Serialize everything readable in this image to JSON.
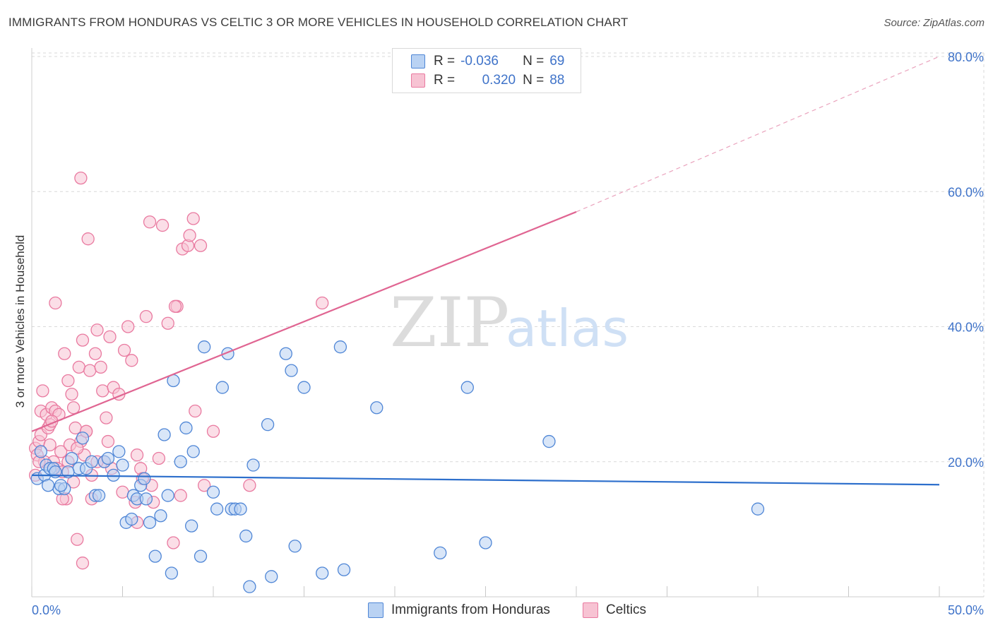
{
  "title": "IMMIGRANTS FROM HONDURAS VS CELTIC 3 OR MORE VEHICLES IN HOUSEHOLD CORRELATION CHART",
  "source": "Source: ZipAtlas.com",
  "watermark": {
    "zip": "ZIP",
    "atlas": "atlas"
  },
  "legend": {
    "rows": [
      {
        "r_label": "R =",
        "r_value": "-0.036",
        "n_label": "N =",
        "n_value": "69"
      },
      {
        "r_label": "R =",
        "r_value": "0.320",
        "n_label": "N =",
        "n_value": "88"
      }
    ]
  },
  "bottom_legend": {
    "series1": "Immigrants from Honduras",
    "series2": "Celtics"
  },
  "colors": {
    "series1_fill": "#b9d2f3",
    "series1_stroke": "#4f86d6",
    "series1_line": "#2d6fcc",
    "series2_fill": "#f7c3d3",
    "series2_stroke": "#e97aa0",
    "series2_line": "#e06592",
    "grid": "#d9d9d9",
    "tick_text": "#3f73c9"
  },
  "chart_data": {
    "type": "scatter",
    "title": "IMMIGRANTS FROM HONDURAS VS CELTIC 3 OR MORE VEHICLES IN HOUSEHOLD CORRELATION CHART",
    "ylabel": "3 or more Vehicles in Household",
    "xlim": [
      0,
      50
    ],
    "ylim": [
      0,
      80
    ],
    "x_tick_labels": [
      "0.0%",
      "50.0%"
    ],
    "y_tick_values": [
      20,
      40,
      60,
      80
    ],
    "y_tick_labels": [
      "20.0%",
      "40.0%",
      "60.0%",
      "80.0%"
    ],
    "series": [
      {
        "name": "Immigrants from Honduras",
        "r": -0.036,
        "n": 69,
        "trend": {
          "x1": 0,
          "y1": 18.0,
          "x2": 50,
          "y2": 16.6
        },
        "points": [
          [
            0.3,
            17.5
          ],
          [
            0.5,
            21.5
          ],
          [
            0.7,
            18
          ],
          [
            0.8,
            19.5
          ],
          [
            1.0,
            19
          ],
          [
            1.2,
            19
          ],
          [
            1.3,
            18.5
          ],
          [
            1.5,
            16
          ],
          [
            1.8,
            16
          ],
          [
            2.2,
            20.5
          ],
          [
            2.6,
            19
          ],
          [
            2.8,
            23.5
          ],
          [
            3.0,
            19
          ],
          [
            3.5,
            15
          ],
          [
            3.7,
            15
          ],
          [
            4.0,
            20
          ],
          [
            4.2,
            20.5
          ],
          [
            4.5,
            18
          ],
          [
            4.8,
            21.5
          ],
          [
            5.2,
            11
          ],
          [
            5.5,
            11.5
          ],
          [
            5.6,
            15
          ],
          [
            5.8,
            14.5
          ],
          [
            6.0,
            16.5
          ],
          [
            6.2,
            17.5
          ],
          [
            6.5,
            11
          ],
          [
            6.8,
            6
          ],
          [
            7.1,
            12
          ],
          [
            7.3,
            24
          ],
          [
            7.5,
            15
          ],
          [
            7.7,
            3.5
          ],
          [
            7.8,
            32
          ],
          [
            8.2,
            20
          ],
          [
            8.5,
            25
          ],
          [
            8.8,
            10.5
          ],
          [
            8.9,
            21.5
          ],
          [
            9.3,
            6
          ],
          [
            9.5,
            37
          ],
          [
            10.0,
            15.5
          ],
          [
            10.2,
            13
          ],
          [
            10.5,
            31
          ],
          [
            10.8,
            36
          ],
          [
            11.0,
            13
          ],
          [
            11.2,
            13
          ],
          [
            11.5,
            13
          ],
          [
            11.8,
            9
          ],
          [
            12.0,
            1.5
          ],
          [
            12.2,
            19.5
          ],
          [
            13.0,
            25.5
          ],
          [
            13.2,
            3
          ],
          [
            14.0,
            36
          ],
          [
            14.3,
            33.5
          ],
          [
            14.5,
            7.5
          ],
          [
            15.0,
            31
          ],
          [
            16.0,
            3.5
          ],
          [
            17.0,
            37
          ],
          [
            17.2,
            4
          ],
          [
            19.0,
            28
          ],
          [
            22.5,
            6.5
          ],
          [
            24.0,
            31
          ],
          [
            25.0,
            8
          ],
          [
            28.5,
            23
          ],
          [
            40.0,
            13
          ],
          [
            1.6,
            16.5
          ],
          [
            2.0,
            18.5
          ],
          [
            3.3,
            20
          ],
          [
            5.0,
            19.5
          ],
          [
            0.9,
            16.5
          ],
          [
            6.3,
            14.5
          ]
        ]
      },
      {
        "name": "Celtics",
        "r": 0.32,
        "n": 88,
        "trend": {
          "x1": 0,
          "y1": 24.5,
          "x2": 30,
          "y2": 57.0
        },
        "trend_dashed_to": {
          "x": 50,
          "y": 80.0
        },
        "points": [
          [
            0.2,
            18
          ],
          [
            0.2,
            22
          ],
          [
            0.3,
            21
          ],
          [
            0.4,
            23
          ],
          [
            0.5,
            24
          ],
          [
            0.5,
            27.5
          ],
          [
            0.6,
            30.5
          ],
          [
            0.7,
            20
          ],
          [
            0.8,
            27
          ],
          [
            0.9,
            25
          ],
          [
            1.0,
            22.5
          ],
          [
            1.0,
            25.5
          ],
          [
            1.1,
            28
          ],
          [
            1.2,
            20
          ],
          [
            1.3,
            27.5
          ],
          [
            1.3,
            43.5
          ],
          [
            1.4,
            19
          ],
          [
            1.5,
            27
          ],
          [
            1.6,
            21.5
          ],
          [
            1.7,
            18.5
          ],
          [
            1.8,
            36
          ],
          [
            1.9,
            14.5
          ],
          [
            2.0,
            20
          ],
          [
            2.0,
            32
          ],
          [
            2.1,
            22.5
          ],
          [
            2.2,
            30
          ],
          [
            2.3,
            17
          ],
          [
            2.3,
            28
          ],
          [
            2.4,
            25
          ],
          [
            2.5,
            8.5
          ],
          [
            2.6,
            34
          ],
          [
            2.7,
            23
          ],
          [
            2.8,
            38
          ],
          [
            2.8,
            5
          ],
          [
            2.9,
            21
          ],
          [
            3.0,
            24.5
          ],
          [
            3.0,
            24.5
          ],
          [
            3.2,
            33.5
          ],
          [
            3.3,
            14.5
          ],
          [
            3.3,
            18
          ],
          [
            3.5,
            36
          ],
          [
            3.6,
            39.5
          ],
          [
            3.8,
            34
          ],
          [
            3.9,
            30.5
          ],
          [
            4.0,
            20
          ],
          [
            4.1,
            26.5
          ],
          [
            4.2,
            23
          ],
          [
            4.3,
            38.5
          ],
          [
            4.5,
            31
          ],
          [
            4.8,
            30
          ],
          [
            5.0,
            15.5
          ],
          [
            5.1,
            36.5
          ],
          [
            5.3,
            40
          ],
          [
            5.5,
            35
          ],
          [
            5.8,
            21
          ],
          [
            5.8,
            11
          ],
          [
            6.0,
            19
          ],
          [
            6.1,
            17.5
          ],
          [
            6.3,
            41.5
          ],
          [
            6.5,
            55.5
          ],
          [
            6.7,
            14
          ],
          [
            7.0,
            20.5
          ],
          [
            7.2,
            55
          ],
          [
            7.5,
            40.5
          ],
          [
            7.8,
            8
          ],
          [
            8.0,
            43
          ],
          [
            8.2,
            15
          ],
          [
            8.3,
            51.5
          ],
          [
            8.6,
            52
          ],
          [
            8.7,
            53.5
          ],
          [
            8.9,
            56
          ],
          [
            9.0,
            27.5
          ],
          [
            9.3,
            52
          ],
          [
            9.5,
            16.5
          ],
          [
            10.0,
            24.5
          ],
          [
            12.0,
            16.5
          ],
          [
            16.0,
            43.5
          ],
          [
            2.7,
            62
          ],
          [
            3.1,
            53
          ],
          [
            1.7,
            14.5
          ],
          [
            4.4,
            19
          ],
          [
            5.7,
            14
          ],
          [
            0.4,
            20
          ],
          [
            1.1,
            26
          ],
          [
            2.5,
            22
          ],
          [
            3.6,
            20
          ],
          [
            6.6,
            16.5
          ],
          [
            7.9,
            43
          ]
        ]
      }
    ]
  }
}
